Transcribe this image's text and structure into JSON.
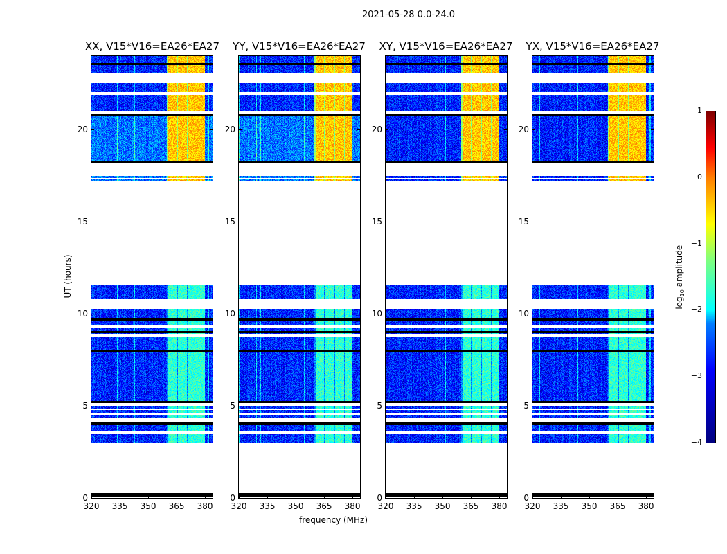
{
  "chart_data": {
    "type": "heatmap",
    "suptitle": "2021-05-28 0.0-24.0",
    "xlabel": "frequency (MHz)",
    "ylabel": "UT (hours)",
    "xlim": [
      320,
      384
    ],
    "ylim": [
      0,
      24
    ],
    "xticks": [
      "320",
      "335",
      "350",
      "365",
      "380"
    ],
    "xtick_values": [
      320,
      335,
      350,
      365,
      380
    ],
    "yticks": [
      "0",
      "5",
      "10",
      "15",
      "20"
    ],
    "ytick_values": [
      0,
      5,
      10,
      15,
      20
    ],
    "panels": [
      {
        "title": "XX, V15*V16=EA26*EA27"
      },
      {
        "title": "YY, V15*V16=EA26*EA27"
      },
      {
        "title": "XY, V15*V16=EA26*EA27"
      },
      {
        "title": "YX, V15*V16=EA26*EA27"
      }
    ],
    "data_segments_hours": [
      [
        2.95,
        11.6
      ],
      [
        17.2,
        24.0
      ]
    ],
    "flagged_gaps_hours": [
      [
        10.26,
        10.8
      ],
      [
        9.2,
        9.4
      ],
      [
        8.75,
        8.9
      ],
      [
        4.0,
        4.2
      ],
      [
        3.45,
        3.6
      ],
      [
        5.0,
        5.2
      ],
      [
        22.55,
        23.1
      ],
      [
        21.9,
        22.05
      ],
      [
        20.9,
        21.05
      ],
      [
        17.5,
        18.2
      ]
    ],
    "rfi_band_mhz": [
      360,
      380
    ],
    "typical_log10_amplitude": {
      "background": -3.2,
      "rfi_band_day": -0.6,
      "rfi_band_night": -1.9
    },
    "colorbar": {
      "label": "log10 amplitude",
      "label_base": "log",
      "label_sub": "10",
      "label_rest": " amplitude",
      "range": [
        -4,
        1
      ],
      "ticks": [
        "1",
        "0",
        "−1",
        "−2",
        "−3",
        "−4"
      ],
      "tick_values": [
        1,
        0,
        -1,
        -2,
        -3,
        -4
      ],
      "colormap": "jet"
    }
  }
}
